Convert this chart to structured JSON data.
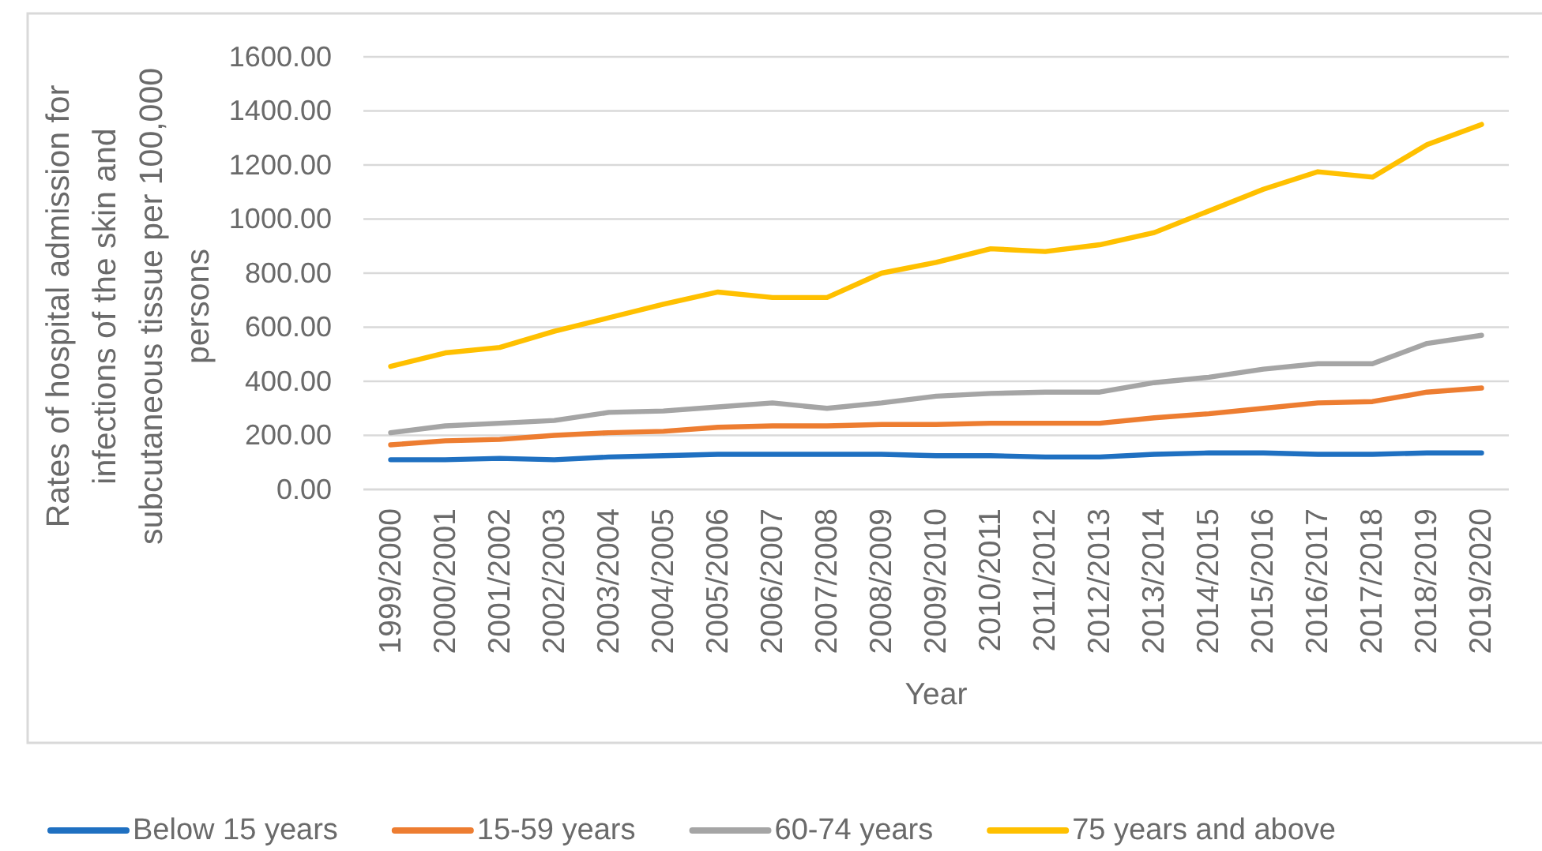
{
  "chart_data": {
    "type": "line",
    "xlabel": "Year",
    "ylabel": "Rates of hospital admission for infections of the skin and subcutaneous tissue per 100,000 persons",
    "categories": [
      "1999/2000",
      "2000/2001",
      "2001/2002",
      "2002/2003",
      "2003/2004",
      "2004/2005",
      "2005/2006",
      "2006/2007",
      "2007/2008",
      "2008/2009",
      "2009/2010",
      "2010/2011",
      "2011/2012",
      "2012/2013",
      "2013/2014",
      "2014/2015",
      "2015/2016",
      "2016/2017",
      "2017/2018",
      "2018/2019",
      "2019/2020"
    ],
    "series": [
      {
        "name": "Below 15 years",
        "color": "#1f70c1",
        "values": [
          110,
          110,
          115,
          110,
          120,
          125,
          130,
          130,
          130,
          130,
          125,
          125,
          120,
          120,
          130,
          135,
          135,
          130,
          130,
          135,
          135
        ]
      },
      {
        "name": "15-59 years",
        "color": "#ed7d31",
        "values": [
          165,
          180,
          185,
          200,
          210,
          215,
          230,
          235,
          235,
          240,
          240,
          245,
          245,
          245,
          265,
          280,
          300,
          320,
          325,
          360,
          375
        ]
      },
      {
        "name": "60-74 years",
        "color": "#a5a5a5",
        "values": [
          210,
          235,
          245,
          255,
          285,
          290,
          305,
          320,
          300,
          320,
          345,
          355,
          360,
          360,
          395,
          415,
          445,
          465,
          465,
          540,
          570
        ]
      },
      {
        "name": "75 years and above",
        "color": "#ffc000",
        "values": [
          455,
          505,
          525,
          585,
          635,
          685,
          730,
          710,
          710,
          800,
          840,
          890,
          880,
          905,
          950,
          1030,
          1110,
          1175,
          1155,
          1275,
          1350
        ]
      }
    ],
    "ylim": [
      0,
      1600
    ],
    "yticks": [
      {
        "value": 0,
        "label": "0.00"
      },
      {
        "value": 200,
        "label": "200.00"
      },
      {
        "value": 400,
        "label": "400.00"
      },
      {
        "value": 600,
        "label": "600.00"
      },
      {
        "value": 800,
        "label": "800.00"
      },
      {
        "value": 1000,
        "label": "1000.00"
      },
      {
        "value": 1200,
        "label": "1200.00"
      },
      {
        "value": 1400,
        "label": "1400.00"
      },
      {
        "value": 1600,
        "label": "1600.00"
      }
    ],
    "grid": "y",
    "legend": "bottom",
    "line_style": "solid"
  }
}
